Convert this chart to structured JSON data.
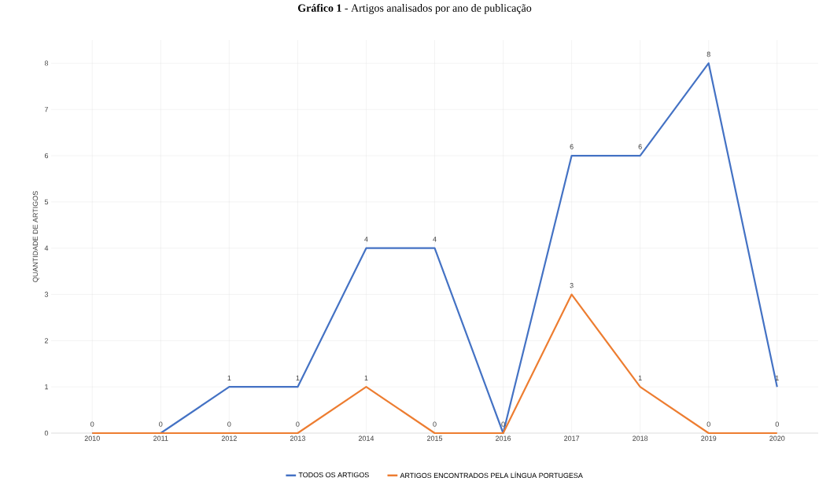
{
  "chart_data": {
    "type": "line",
    "title": "**Gráfico 1** - Artigos analisados por ano de publicação",
    "ylabel": "QUANTIDADE DE ARTIGOS",
    "categories": [
      "2010",
      "2011",
      "2012",
      "2013",
      "2014",
      "2015",
      "2016",
      "2017",
      "2018",
      "2019",
      "2020"
    ],
    "series": [
      {
        "name": "TODOS OS ARTIGOS",
        "color": "#4472c4",
        "values": [
          0,
          0,
          1,
          1,
          4,
          4,
          0,
          6,
          6,
          8,
          1
        ],
        "value_labels": [
          "0",
          "0",
          "1",
          "1",
          "4",
          "4",
          "0",
          "6",
          "6",
          "8",
          "1"
        ]
      },
      {
        "name": "ARTIGOS ENCONTRADOS PELA LÍNGUA PORTUGESA",
        "color": "#ed7d31",
        "values": [
          0,
          0,
          0,
          0,
          1,
          0,
          0,
          3,
          1,
          0,
          0
        ],
        "value_labels": [
          null,
          null,
          "0",
          "0",
          "1",
          "0",
          null,
          "3",
          "1",
          "0",
          "0"
        ]
      }
    ],
    "ylim": [
      0,
      8.5
    ],
    "yticks": [
      0,
      1,
      2,
      3,
      4,
      5,
      6,
      7,
      8
    ],
    "grid": true,
    "legend": "bottom",
    "marker": "none",
    "line_style": "solid"
  }
}
